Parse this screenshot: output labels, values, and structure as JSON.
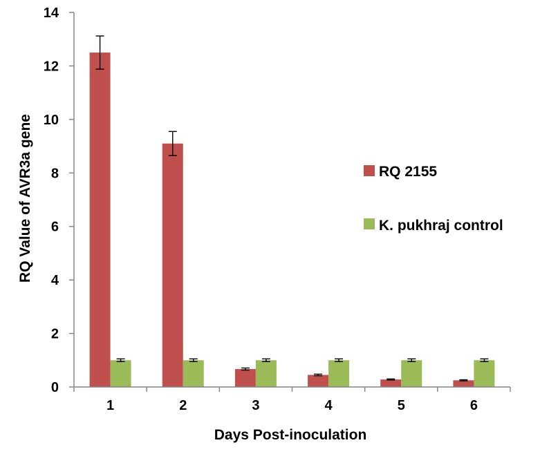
{
  "chart_data": {
    "type": "bar",
    "title": "",
    "xlabel": "Days Post-inoculation",
    "ylabel": "RQ Value of AVR3a gene",
    "categories": [
      "1",
      "2",
      "3",
      "4",
      "5",
      "6"
    ],
    "ylim": [
      0,
      14
    ],
    "yticks": [
      "0",
      "2",
      "4",
      "6",
      "8",
      "10",
      "12",
      "14"
    ],
    "grid": false,
    "legend_position": "right",
    "series": [
      {
        "name": "RQ 2155",
        "color": "#c0504d",
        "values": [
          12.5,
          9.1,
          0.67,
          0.45,
          0.28,
          0.25
        ],
        "errors": [
          0.62,
          0.45,
          0.04,
          0.03,
          0.02,
          0.02
        ]
      },
      {
        "name": "K. pukhraj control",
        "color": "#9bbb59",
        "values": [
          1.0,
          1.0,
          1.0,
          1.0,
          1.0,
          1.0
        ],
        "errors": [
          0.05,
          0.05,
          0.05,
          0.05,
          0.05,
          0.05
        ]
      }
    ]
  }
}
